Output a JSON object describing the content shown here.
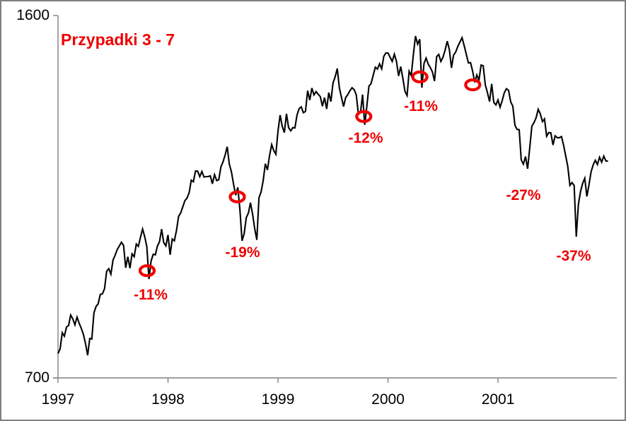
{
  "colors": {
    "line": "#000000",
    "axis": "#808080",
    "accent": "#ee0000",
    "tick_text": "#000000",
    "background": "#ffffff",
    "frame_border": "#808080"
  },
  "chart_data": {
    "type": "line",
    "title": "Przypadki 3 - 7",
    "title_color": "#ee0000",
    "grid": false,
    "legend": false,
    "x_axis": {
      "tick_labels": [
        "1997",
        "1998",
        "1999",
        "2000",
        "2001"
      ],
      "tick_years": [
        1997,
        1998,
        1999,
        2000,
        2001
      ],
      "range": [
        1997.0,
        2002.08
      ]
    },
    "y_axis": {
      "scale": "log",
      "min": 700,
      "max": 1600,
      "tick_labels": [
        "1600",
        "700"
      ],
      "tick_values": [
        1600,
        700
      ]
    },
    "series": [
      {
        "name": "index-price-weekly-close",
        "color": "#000000",
        "x_start": 1997.0,
        "x_step_years": 0.01923076923,
        "values": [
          740,
          748,
          776,
          770,
          786,
          789,
          808,
          801,
          790,
          804,
          793,
          784,
          773,
          757,
          737,
          766,
          765,
          812,
          824,
          829,
          847,
          848,
          858,
          893,
          898,
          887,
          916,
          926,
          938,
          946,
          954,
          947,
          900,
          923,
          899,
          929,
          923,
          950,
          945,
          965,
          983,
          966,
          944,
          877,
          914,
          928,
          927,
          946,
          955,
          983,
          953,
          946,
          970,
          927,
          961,
          957,
          980,
          1012,
          1020,
          1034,
          1049,
          1055,
          1068,
          1099,
          1095,
          1122,
          1122,
          1108,
          1121,
          1107,
          1108,
          1108,
          1110,
          1090,
          1113,
          1098,
          1100,
          1133,
          1146,
          1164,
          1186,
          1140,
          1120,
          1089,
          1062,
          1081,
          1027,
          957,
          973,
          1009,
          1020,
          1044,
          1017,
          984,
          959,
          1056,
          1070,
          1098,
          1141,
          1125,
          1163,
          1192,
          1176,
          1166,
          1229,
          1275,
          1243,
          1225,
          1279,
          1239,
          1230,
          1239,
          1238,
          1275,
          1294,
          1299,
          1282,
          1286,
          1348,
          1319,
          1356,
          1335,
          1345,
          1337,
          1330,
          1301,
          1327,
          1293,
          1342,
          1315,
          1372,
          1391,
          1418,
          1356,
          1328,
          1300,
          1327,
          1336,
          1348,
          1357,
          1351,
          1335,
          1277,
          1283,
          1336,
          1247,
          1301,
          1362,
          1370,
          1396,
          1422,
          1416,
          1433,
          1417,
          1458,
          1469,
          1469,
          1455,
          1441,
          1465,
          1441,
          1394,
          1424,
          1387,
          1346,
          1333,
          1409,
          1395,
          1464,
          1527,
          1499,
          1516,
          1357,
          1434,
          1452,
          1432,
          1421,
          1407,
          1378,
          1457,
          1464,
          1441,
          1455,
          1479,
          1509,
          1480,
          1420,
          1462,
          1472,
          1491,
          1506,
          1521,
          1494,
          1465,
          1436,
          1437,
          1409,
          1374,
          1397,
          1380,
          1429,
          1427,
          1366,
          1342,
          1315,
          1369,
          1312,
          1305,
          1320,
          1298,
          1318,
          1342,
          1354,
          1349,
          1314,
          1301,
          1246,
          1234,
          1233,
          1151,
          1140,
          1160,
          1128,
          1183,
          1243,
          1253,
          1267,
          1292,
          1278,
          1256,
          1264,
          1215,
          1225,
          1224,
          1191,
          1216,
          1211,
          1211,
          1214,
          1190,
          1162,
          1134,
          1086,
          1093,
          1086,
          966,
          1040,
          1071,
          1091,
          1104,
          1059,
          1087,
          1120,
          1138,
          1150,
          1139,
          1158,
          1145,
          1161,
          1148,
          1148
        ]
      }
    ],
    "annotations": {
      "accent_color": "#ee0000",
      "circles": [
        {
          "x_year": 1997.81,
          "value": 894
        },
        {
          "x_year": 1998.63,
          "value": 1058
        },
        {
          "x_year": 1999.78,
          "value": 1271
        },
        {
          "x_year": 2000.29,
          "value": 1391
        },
        {
          "x_year": 2000.77,
          "value": 1366
        }
      ],
      "labels": [
        {
          "text": "-11%",
          "x_year": 1997.84,
          "value": 845
        },
        {
          "text": "-19%",
          "x_year": 1998.68,
          "value": 931
        },
        {
          "text": "-12%",
          "x_year": 1999.8,
          "value": 1209
        },
        {
          "text": "-11%",
          "x_year": 2000.3,
          "value": 1300
        },
        {
          "text": "-27%",
          "x_year": 2001.23,
          "value": 1061
        },
        {
          "text": "-37%",
          "x_year": 2001.69,
          "value": 923
        }
      ]
    }
  }
}
